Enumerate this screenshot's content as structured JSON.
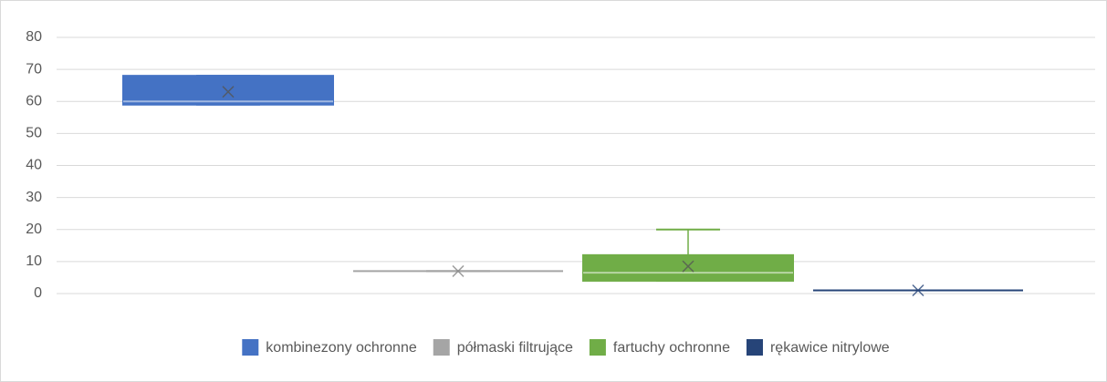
{
  "chart_data": {
    "type": "boxplot",
    "series": [
      {
        "name": "kombinezony ochronne",
        "color": "#4472c4",
        "min": 59,
        "q1": 59,
        "median": 60,
        "q3": 68,
        "max": 68,
        "mean": 63
      },
      {
        "name": "półmaski filtrujące",
        "color": "#a5a5a5",
        "min": 7,
        "q1": 7,
        "median": 7,
        "q3": 7,
        "max": 7,
        "mean": 7
      },
      {
        "name": "fartuchy ochronne",
        "color": "#70ad47",
        "min": 4,
        "q1": 4,
        "median": 6.5,
        "q3": 12,
        "max": 20,
        "mean": 8.5
      },
      {
        "name": "rękawice nitrylowe",
        "color": "#264478",
        "min": 1,
        "q1": 1,
        "median": 1,
        "q3": 1,
        "max": 1,
        "mean": 1
      }
    ],
    "ylim": [
      0,
      80
    ],
    "yticks": [
      0,
      10,
      20,
      30,
      40,
      50,
      60,
      70,
      80
    ],
    "grid": true,
    "legend": "bottom"
  }
}
